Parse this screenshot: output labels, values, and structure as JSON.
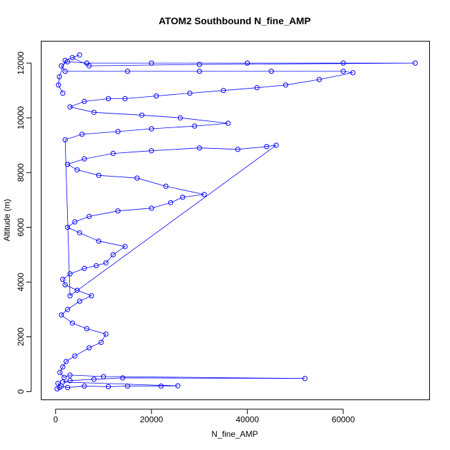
{
  "chart_data": {
    "type": "scatter",
    "title": "ATOM2 Southbound N_fine_AMP",
    "xlabel": "N_fine_AMP",
    "ylabel": "Altitude (m)",
    "xlim": [
      -3000,
      78000
    ],
    "ylim": [
      -300,
      12800
    ],
    "x_ticks": [
      0,
      20000,
      40000,
      60000
    ],
    "y_ticks": [
      0,
      2000,
      4000,
      6000,
      8000,
      10000,
      12000
    ],
    "x_tick_labels": [
      "0",
      "20000",
      "40000",
      "60000"
    ],
    "y_tick_labels": [
      "0",
      "2000",
      "4000",
      "6000",
      "8000",
      "10000",
      "12000"
    ],
    "marker": "open-circle",
    "connected": true,
    "grid": false,
    "colors": {
      "series": "#0000ff",
      "axis": "#000000"
    },
    "series": [
      {
        "points": [
          [
            300,
            100
          ],
          [
            800,
            150
          ],
          [
            500,
            300
          ],
          [
            1200,
            200
          ],
          [
            2500,
            150
          ],
          [
            6000,
            200
          ],
          [
            11000,
            180
          ],
          [
            15000,
            200
          ],
          [
            22000,
            200
          ],
          [
            25500,
            210
          ],
          [
            1500,
            350
          ],
          [
            3000,
            400
          ],
          [
            8000,
            450
          ],
          [
            14000,
            500
          ],
          [
            52000,
            480
          ],
          [
            10000,
            550
          ],
          [
            3000,
            600
          ],
          [
            1800,
            520
          ],
          [
            900,
            700
          ],
          [
            1500,
            900
          ],
          [
            2200,
            1100
          ],
          [
            4000,
            1300
          ],
          [
            7000,
            1600
          ],
          [
            9500,
            1800
          ],
          [
            10500,
            2100
          ],
          [
            6500,
            2300
          ],
          [
            3500,
            2500
          ],
          [
            1200,
            2800
          ],
          [
            2500,
            3000
          ],
          [
            5000,
            3300
          ],
          [
            7500,
            3500
          ],
          [
            4500,
            3700
          ],
          [
            2000,
            3900
          ],
          [
            1500,
            4100
          ],
          [
            3000,
            4300
          ],
          [
            6000,
            4500
          ],
          [
            8500,
            4600
          ],
          [
            10500,
            4700
          ],
          [
            12000,
            5000
          ],
          [
            14500,
            5300
          ],
          [
            9000,
            5500
          ],
          [
            5000,
            5800
          ],
          [
            2500,
            6000
          ],
          [
            4000,
            6200
          ],
          [
            7000,
            6400
          ],
          [
            13000,
            6600
          ],
          [
            20000,
            6700
          ],
          [
            24000,
            6900
          ],
          [
            26500,
            7100
          ],
          [
            31000,
            7200
          ],
          [
            23000,
            7500
          ],
          [
            17000,
            7800
          ],
          [
            9000,
            7900
          ],
          [
            4500,
            8100
          ],
          [
            2500,
            8300
          ],
          [
            6000,
            8500
          ],
          [
            12000,
            8700
          ],
          [
            20000,
            8800
          ],
          [
            30000,
            8900
          ],
          [
            38000,
            8850
          ],
          [
            44000,
            8950
          ],
          [
            46000,
            9000
          ],
          [
            3000,
            3500
          ],
          [
            2000,
            9200
          ],
          [
            5500,
            9400
          ],
          [
            13000,
            9500
          ],
          [
            20000,
            9600
          ],
          [
            29000,
            9700
          ],
          [
            36000,
            9800
          ],
          [
            26000,
            10000
          ],
          [
            18000,
            10100
          ],
          [
            8000,
            10200
          ],
          [
            3000,
            10400
          ],
          [
            6000,
            10600
          ],
          [
            11000,
            10700
          ],
          [
            14500,
            10700
          ],
          [
            21000,
            10800
          ],
          [
            28000,
            10900
          ],
          [
            35000,
            11000
          ],
          [
            42000,
            11100
          ],
          [
            48000,
            11200
          ],
          [
            55000,
            11400
          ],
          [
            62000,
            11650
          ],
          [
            60000,
            11700
          ],
          [
            45000,
            11700
          ],
          [
            30000,
            11700
          ],
          [
            15000,
            11700
          ],
          [
            2000,
            11700
          ],
          [
            1200,
            11900
          ],
          [
            2500,
            12050
          ],
          [
            6500,
            12000
          ],
          [
            20000,
            12000
          ],
          [
            40000,
            12000
          ],
          [
            60000,
            12000
          ],
          [
            75000,
            12000
          ],
          [
            30000,
            11950
          ],
          [
            7000,
            11900
          ],
          [
            3500,
            12200
          ],
          [
            5000,
            12300
          ],
          [
            2000,
            12100
          ],
          [
            800,
            11500
          ],
          [
            600,
            11200
          ],
          [
            1500,
            10900
          ]
        ]
      }
    ]
  }
}
